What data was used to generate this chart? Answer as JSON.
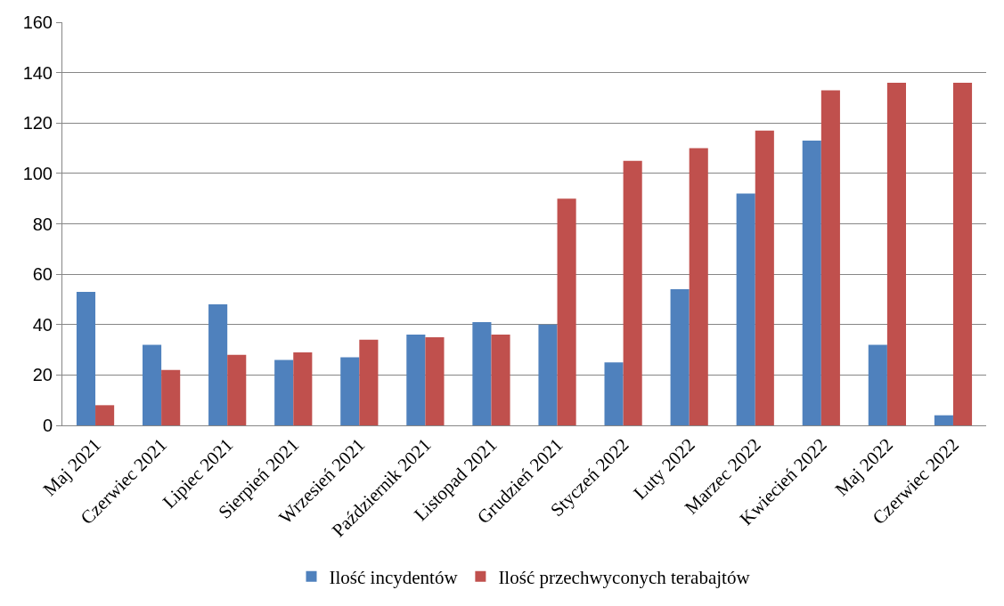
{
  "chart_data": {
    "type": "bar",
    "categories": [
      "Maj 2021",
      "Czerwiec 2021",
      "Lipiec 2021",
      "Sierpień 2021",
      "Wrzesień 2021",
      "Październik 2021",
      "Listopad 2021",
      "Grudzień 2021",
      "Styczeń 2022",
      "Luty 2022",
      "Marzec 2022",
      "Kwiecień 2022",
      "Maj 2022",
      "Czerwiec 2022"
    ],
    "series": [
      {
        "name": "Ilość incydentów",
        "color": "#4f81bd",
        "values": [
          53,
          32,
          48,
          26,
          27,
          36,
          41,
          40,
          25,
          54,
          92,
          113,
          32,
          4
        ]
      },
      {
        "name": "Ilość przechwyconych terabajtów",
        "color": "#c0504d",
        "values": [
          8,
          22,
          28,
          29,
          34,
          35,
          36,
          90,
          105,
          110,
          117,
          133,
          136,
          136
        ]
      }
    ],
    "ylim": [
      0,
      160
    ],
    "yticks": [
      0,
      20,
      40,
      60,
      80,
      100,
      120,
      140,
      160
    ],
    "grid": "y",
    "legend": "bottom"
  }
}
